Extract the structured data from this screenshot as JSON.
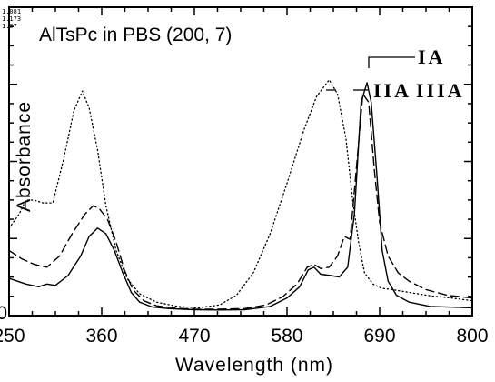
{
  "chart_data": {
    "type": "line",
    "title": "AlTsPc in PBS (200, 7)",
    "xlabel": "Wavelength  (nm)",
    "ylabel": "Absorbance",
    "xlim": [
      250,
      800
    ],
    "ylim": [
      0,
      1.07
    ],
    "x_ticks": [
      250,
      360,
      470,
      580,
      690,
      800
    ],
    "y_ticks": [
      0
    ],
    "corner_labels": [
      "1.081",
      "1.173",
      "1.07"
    ],
    "grid": false,
    "series": [
      {
        "name": "IA",
        "style": "solid",
        "points": [
          [
            250,
            0.12
          ],
          [
            270,
            0.1
          ],
          [
            285,
            0.09
          ],
          [
            295,
            0.1
          ],
          [
            305,
            0.095
          ],
          [
            320,
            0.13
          ],
          [
            335,
            0.2
          ],
          [
            345,
            0.27
          ],
          [
            355,
            0.3
          ],
          [
            365,
            0.28
          ],
          [
            375,
            0.22
          ],
          [
            385,
            0.14
          ],
          [
            395,
            0.07
          ],
          [
            405,
            0.035
          ],
          [
            420,
            0.018
          ],
          [
            440,
            0.012
          ],
          [
            470,
            0.008
          ],
          [
            500,
            0.007
          ],
          [
            530,
            0.008
          ],
          [
            560,
            0.02
          ],
          [
            580,
            0.05
          ],
          [
            595,
            0.09
          ],
          [
            605,
            0.15
          ],
          [
            612,
            0.16
          ],
          [
            620,
            0.135
          ],
          [
            632,
            0.13
          ],
          [
            642,
            0.125
          ],
          [
            652,
            0.16
          ],
          [
            660,
            0.35
          ],
          [
            668,
            0.75
          ],
          [
            675,
            0.82
          ],
          [
            680,
            0.75
          ],
          [
            687,
            0.48
          ],
          [
            693,
            0.22
          ],
          [
            700,
            0.11
          ],
          [
            710,
            0.06
          ],
          [
            725,
            0.035
          ],
          [
            750,
            0.02
          ],
          [
            800,
            0.015
          ]
        ]
      },
      {
        "name": "IIA",
        "style": "dashed",
        "points": [
          [
            250,
            0.22
          ],
          [
            265,
            0.19
          ],
          [
            280,
            0.17
          ],
          [
            295,
            0.16
          ],
          [
            310,
            0.2
          ],
          [
            325,
            0.28
          ],
          [
            340,
            0.35
          ],
          [
            350,
            0.38
          ],
          [
            357,
            0.37
          ],
          [
            367,
            0.33
          ],
          [
            377,
            0.25
          ],
          [
            387,
            0.15
          ],
          [
            397,
            0.08
          ],
          [
            410,
            0.04
          ],
          [
            425,
            0.022
          ],
          [
            450,
            0.013
          ],
          [
            470,
            0.01
          ],
          [
            500,
            0.01
          ],
          [
            530,
            0.012
          ],
          [
            555,
            0.025
          ],
          [
            575,
            0.055
          ],
          [
            592,
            0.1
          ],
          [
            604,
            0.16
          ],
          [
            612,
            0.17
          ],
          [
            620,
            0.155
          ],
          [
            630,
            0.16
          ],
          [
            640,
            0.2
          ],
          [
            648,
            0.27
          ],
          [
            655,
            0.26
          ],
          [
            662,
            0.5
          ],
          [
            670,
            0.78
          ],
          [
            677,
            0.75
          ],
          [
            684,
            0.5
          ],
          [
            690,
            0.32
          ],
          [
            700,
            0.2
          ],
          [
            712,
            0.14
          ],
          [
            725,
            0.11
          ],
          [
            745,
            0.08
          ],
          [
            770,
            0.06
          ],
          [
            800,
            0.05
          ]
        ]
      },
      {
        "name": "IIIA",
        "style": "dotted",
        "points": [
          [
            250,
            0.3
          ],
          [
            262,
            0.35
          ],
          [
            270,
            0.4
          ],
          [
            280,
            0.4
          ],
          [
            290,
            0.39
          ],
          [
            302,
            0.39
          ],
          [
            315,
            0.55
          ],
          [
            327,
            0.72
          ],
          [
            337,
            0.79
          ],
          [
            345,
            0.73
          ],
          [
            355,
            0.58
          ],
          [
            365,
            0.38
          ],
          [
            377,
            0.22
          ],
          [
            390,
            0.12
          ],
          [
            405,
            0.065
          ],
          [
            425,
            0.035
          ],
          [
            450,
            0.02
          ],
          [
            475,
            0.015
          ],
          [
            500,
            0.025
          ],
          [
            520,
            0.06
          ],
          [
            540,
            0.14
          ],
          [
            560,
            0.28
          ],
          [
            580,
            0.46
          ],
          [
            600,
            0.65
          ],
          [
            615,
            0.77
          ],
          [
            630,
            0.83
          ],
          [
            640,
            0.78
          ],
          [
            650,
            0.62
          ],
          [
            658,
            0.4
          ],
          [
            665,
            0.25
          ],
          [
            672,
            0.14
          ],
          [
            682,
            0.1
          ],
          [
            692,
            0.085
          ],
          [
            705,
            0.08
          ],
          [
            725,
            0.07
          ],
          [
            750,
            0.058
          ],
          [
            775,
            0.05
          ],
          [
            800,
            0.04
          ]
        ]
      }
    ]
  }
}
